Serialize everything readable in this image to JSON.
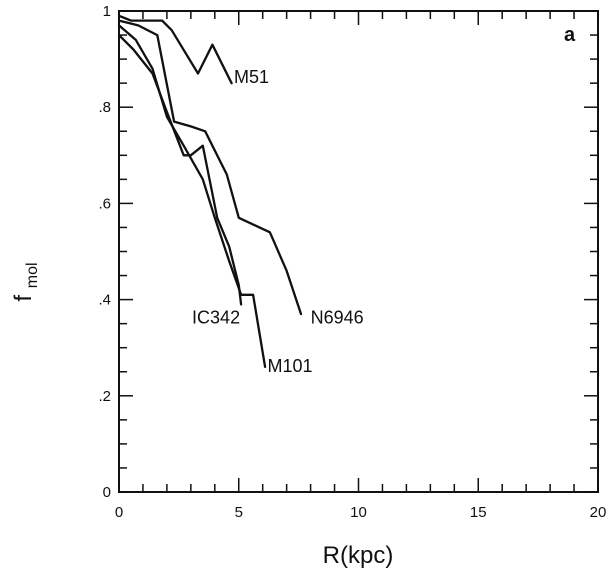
{
  "chart_data": {
    "type": "line",
    "panel_label": "a",
    "xlabel": "R(kpc)",
    "ylabel": "f_mol",
    "ylabel_main": "f",
    "ylabel_sub": "mol",
    "xlim": [
      0,
      20
    ],
    "ylim": [
      0,
      1
    ],
    "x_ticks": [
      0,
      5,
      10,
      15,
      20
    ],
    "x_tick_labels": [
      "0",
      "5",
      "10",
      "15",
      "20"
    ],
    "y_ticks": [
      0,
      0.2,
      0.4,
      0.6,
      0.8,
      1.0
    ],
    "y_tick_labels": [
      "0",
      ".2",
      ".4",
      ".6",
      ".8",
      "1"
    ],
    "series": [
      {
        "name": "M51",
        "x": [
          0.0,
          0.5,
          1.5,
          1.8,
          2.2,
          3.3,
          3.9,
          4.7
        ],
        "y": [
          0.99,
          0.98,
          0.98,
          0.98,
          0.96,
          0.87,
          0.93,
          0.85
        ]
      },
      {
        "name": "N6946",
        "x": [
          0.0,
          0.8,
          1.6,
          2.3,
          3.0,
          3.6,
          4.5,
          5.0,
          6.3,
          7.0,
          7.6
        ],
        "y": [
          0.98,
          0.97,
          0.95,
          0.77,
          0.76,
          0.75,
          0.66,
          0.57,
          0.54,
          0.46,
          0.37
        ]
      },
      {
        "name": "IC342",
        "x": [
          0.0,
          0.6,
          1.4,
          2.0,
          2.7,
          3.0,
          3.5,
          4.1,
          4.6,
          5.0,
          5.1
        ],
        "y": [
          0.95,
          0.92,
          0.87,
          0.79,
          0.7,
          0.7,
          0.72,
          0.57,
          0.51,
          0.43,
          0.39
        ]
      },
      {
        "name": "M101",
        "x": [
          0.0,
          0.7,
          1.4,
          2.0,
          2.7,
          3.5,
          4.0,
          4.6,
          5.1,
          5.6,
          6.1
        ],
        "y": [
          0.97,
          0.94,
          0.88,
          0.78,
          0.72,
          0.65,
          0.57,
          0.48,
          0.41,
          0.41,
          0.26
        ]
      }
    ],
    "label_anchors_data": [
      {
        "name": "M51",
        "x": 4.8,
        "y": 0.85
      },
      {
        "name": "N6946",
        "x": 8.0,
        "y": 0.35
      },
      {
        "name": "IC342",
        "x": 3.05,
        "y": 0.35
      },
      {
        "name": "M101",
        "x": 6.2,
        "y": 0.25
      }
    ]
  }
}
